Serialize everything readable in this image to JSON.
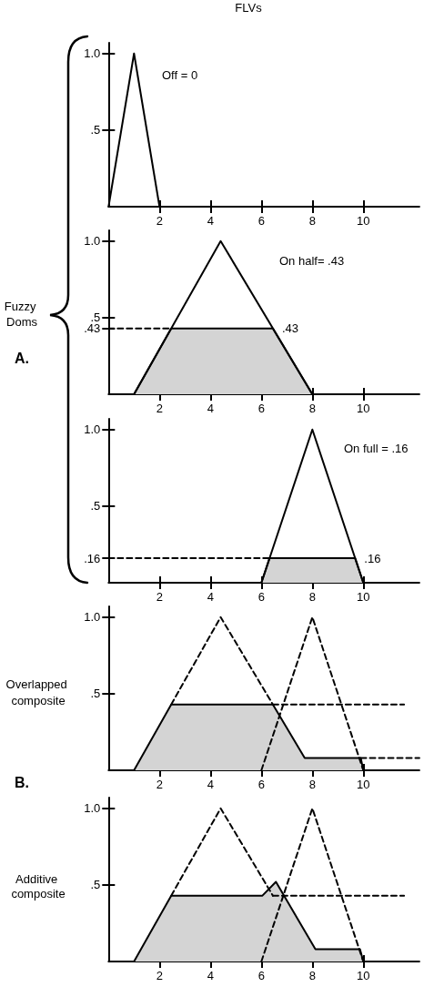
{
  "chart_data": [
    {
      "type": "line",
      "title": "FLVs",
      "series": [
        {
          "color": "#000000",
          "x": [
            0,
            1,
            2
          ],
          "values": [
            0,
            1,
            0
          ]
        }
      ],
      "xlim": [
        0,
        12.2
      ],
      "ylim": [
        0,
        1.07
      ],
      "xticks": [
        2,
        4,
        6,
        8,
        10
      ],
      "yticks": [
        {
          "value": 0.5,
          "label": ".5"
        },
        {
          "value": 1,
          "label": "1.0"
        }
      ],
      "marker": "none",
      "annotations": [
        "Off = 0"
      ]
    },
    {
      "type": "line",
      "ylabel": "Fuzzy Doms",
      "series": [
        {
          "type": "area",
          "color": "#d4d4d4",
          "x": [
            1,
            2.46,
            6.45,
            8
          ],
          "values": [
            0,
            0.43,
            0.43,
            0
          ]
        },
        {
          "color": "#000000",
          "x": [
            1,
            4.4,
            8
          ],
          "values": [
            0,
            1,
            0
          ]
        },
        {
          "color": "#000000",
          "x": [
            0,
            2.46
          ],
          "values": [
            0.43,
            0.43
          ],
          "line_style": "dashed"
        }
      ],
      "xlim": [
        0,
        12.2
      ],
      "ylim": [
        0,
        1.07
      ],
      "xticks": [
        2,
        4,
        6,
        8,
        10
      ],
      "yticks": [
        {
          "value": 0.43,
          "label": ".43"
        },
        {
          "value": 0.5,
          "label": ".5"
        },
        {
          "value": 1,
          "label": "1.0"
        }
      ],
      "marker": "none",
      "annotations": [
        "On half= .43",
        {
          "text": ".43",
          "x": 6.45,
          "y": 0.43
        },
        "A."
      ]
    },
    {
      "type": "line",
      "series": [
        {
          "type": "area",
          "color": "#d4d4d4",
          "x": [
            6,
            6.32,
            9.68,
            10
          ],
          "values": [
            0,
            0.16,
            0.16,
            0
          ]
        },
        {
          "color": "#000000",
          "x": [
            6,
            8,
            10
          ],
          "values": [
            0,
            1,
            0
          ]
        },
        {
          "color": "#000000",
          "x": [
            0,
            6.32
          ],
          "values": [
            0.16,
            0.16
          ],
          "line_style": "dashed"
        }
      ],
      "xlim": [
        0,
        12.2
      ],
      "ylim": [
        0,
        1.07
      ],
      "xticks": [
        2,
        4,
        6,
        8,
        10
      ],
      "yticks": [
        {
          "value": 0.16,
          "label": ".16"
        },
        {
          "value": 0.5,
          "label": ".5"
        },
        {
          "value": 1,
          "label": "1.0"
        }
      ],
      "marker": "none",
      "annotations": [
        "On full = .16",
        {
          "text": ".16",
          "x": 9.68,
          "y": 0.16
        }
      ]
    },
    {
      "type": "line",
      "ylabel": "Overlapped composite",
      "series": [
        {
          "type": "area",
          "color": "#d4d4d4",
          "x": [
            1,
            2.46,
            6.45,
            7.7,
            9.9,
            10
          ],
          "values": [
            0,
            0.43,
            0.43,
            0.08,
            0.08,
            0
          ]
        },
        {
          "color": "#000000",
          "x": [
            2.46,
            4.4,
            6.45
          ],
          "values": [
            0.43,
            1,
            0.43
          ],
          "line_style": "dashed"
        },
        {
          "color": "#000000",
          "x": [
            6,
            8,
            10
          ],
          "values": [
            0,
            1,
            0
          ],
          "line_style": "dashed"
        },
        {
          "color": "#000000",
          "x": [
            6.45,
            11.6
          ],
          "values": [
            0.43,
            0.43
          ],
          "line_style": "dashed"
        },
        {
          "color": "#000000",
          "x": [
            9.9,
            12.2
          ],
          "values": [
            0.08,
            0.08
          ],
          "line_style": "dashed"
        }
      ],
      "xlim": [
        0,
        12.2
      ],
      "ylim": [
        0,
        1.07
      ],
      "xticks": [
        2,
        4,
        6,
        8,
        10
      ],
      "yticks": [
        {
          "value": 0.5,
          "label": ".5"
        },
        {
          "value": 1,
          "label": "1.0"
        }
      ],
      "marker": "none",
      "annotations": [
        "B."
      ]
    },
    {
      "type": "line",
      "ylabel": "Additive composite",
      "series": [
        {
          "type": "area",
          "color": "#d4d4d4",
          "x": [
            1,
            2.46,
            6.04,
            6.57,
            8.12,
            9.87,
            10
          ],
          "values": [
            0,
            0.43,
            0.43,
            0.52,
            0.08,
            0.08,
            0
          ]
        },
        {
          "color": "#000000",
          "x": [
            2.46,
            4.4,
            6.45
          ],
          "values": [
            0.43,
            1,
            0.43
          ],
          "line_style": "dashed"
        },
        {
          "color": "#000000",
          "x": [
            6,
            8,
            10
          ],
          "values": [
            0,
            1,
            0
          ],
          "line_style": "dashed"
        },
        {
          "color": "#000000",
          "x": [
            6.45,
            11.6
          ],
          "values": [
            0.43,
            0.43
          ],
          "line_style": "dashed"
        }
      ],
      "xlim": [
        0,
        12.2
      ],
      "ylim": [
        0,
        1.07
      ],
      "xticks": [
        2,
        4,
        6,
        8,
        10
      ],
      "yticks": [
        {
          "value": 0.5,
          "label": ".5"
        },
        {
          "value": 1,
          "label": "1.0"
        }
      ],
      "marker": "none"
    }
  ]
}
